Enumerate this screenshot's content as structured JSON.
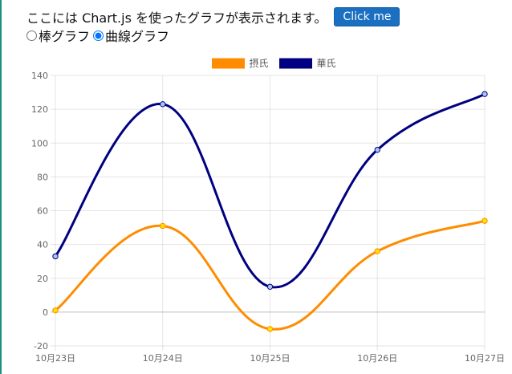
{
  "header": {
    "intro_text": "ここには Chart.js を使ったグラフが表示されます。",
    "button_label": "Click me"
  },
  "chart_type_selector": {
    "options": [
      {
        "label": "棒グラフ",
        "checked": false
      },
      {
        "label": "曲線グラフ",
        "checked": true
      }
    ]
  },
  "chart_data": {
    "type": "line",
    "categories": [
      "10月23日",
      "10月24日",
      "10月25日",
      "10月26日",
      "10月27日"
    ],
    "series": [
      {
        "name": "摂氏",
        "values": [
          1,
          51,
          -10,
          36,
          54
        ],
        "color": "#ff8c00",
        "point_color": "#ffe000"
      },
      {
        "name": "華氏",
        "values": [
          33,
          123,
          15,
          96,
          129
        ],
        "color": "#000080",
        "point_color": "#a8c6f0"
      }
    ],
    "ylim": [
      -20,
      140
    ],
    "yticks": [
      -20,
      0,
      20,
      40,
      60,
      80,
      100,
      120,
      140
    ],
    "grid": true,
    "legend_position": "top-center"
  }
}
